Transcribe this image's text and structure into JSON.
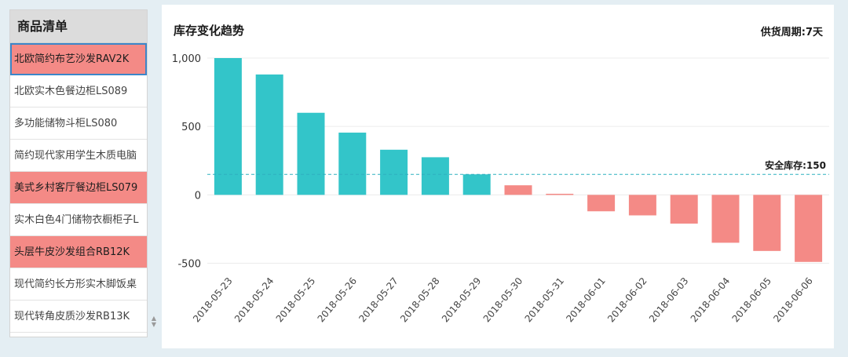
{
  "product_list": {
    "header": "商品清单",
    "items": [
      {
        "label": "北欧简约布艺沙发RAV2K",
        "alert": true,
        "selected": true
      },
      {
        "label": "北欧实木色餐边柜LS089",
        "alert": false,
        "selected": false
      },
      {
        "label": "多功能储物斗柜LS080",
        "alert": false,
        "selected": false
      },
      {
        "label": "简约现代家用学生木质电脑",
        "alert": false,
        "selected": false
      },
      {
        "label": "美式乡村客厅餐边柜LS079",
        "alert": true,
        "selected": false
      },
      {
        "label": "实木白色4门储物衣橱柜子L",
        "alert": false,
        "selected": false
      },
      {
        "label": "头层牛皮沙发组合RB12K",
        "alert": true,
        "selected": false
      },
      {
        "label": "现代简约长方形实木脚饭桌",
        "alert": false,
        "selected": false
      },
      {
        "label": "现代转角皮质沙发RB13K",
        "alert": false,
        "selected": false
      }
    ],
    "scroll_icon": "up-down-chevron-icon"
  },
  "chart": {
    "title": "库存变化趋势",
    "subtitle": "供货周期:7天"
  },
  "chart_data": {
    "type": "bar",
    "title": "库存变化趋势",
    "categories": [
      "2018-05-23",
      "2018-05-24",
      "2018-05-25",
      "2018-05-26",
      "2018-05-27",
      "2018-05-28",
      "2018-05-29",
      "2018-05-30",
      "2018-05-31",
      "2018-06-01",
      "2018-06-02",
      "2018-06-03",
      "2018-06-04",
      "2018-06-05",
      "2018-06-06"
    ],
    "values": [
      1000,
      880,
      600,
      455,
      330,
      275,
      150,
      70,
      8,
      -120,
      -150,
      -210,
      -350,
      -410,
      -490
    ],
    "ylim": [
      -560,
      1000
    ],
    "yticks": [
      -500,
      0,
      500,
      1000
    ],
    "ytick_labels": [
      "-500",
      "0",
      "500",
      "1,000"
    ],
    "reference_line": {
      "label": "安全库存:150",
      "value": 150
    },
    "colors": {
      "above_safe": "#33c5c9",
      "below_safe": "#f48a86",
      "reference": "#2fb0bf",
      "grid": "#ececec"
    },
    "grid": true
  }
}
